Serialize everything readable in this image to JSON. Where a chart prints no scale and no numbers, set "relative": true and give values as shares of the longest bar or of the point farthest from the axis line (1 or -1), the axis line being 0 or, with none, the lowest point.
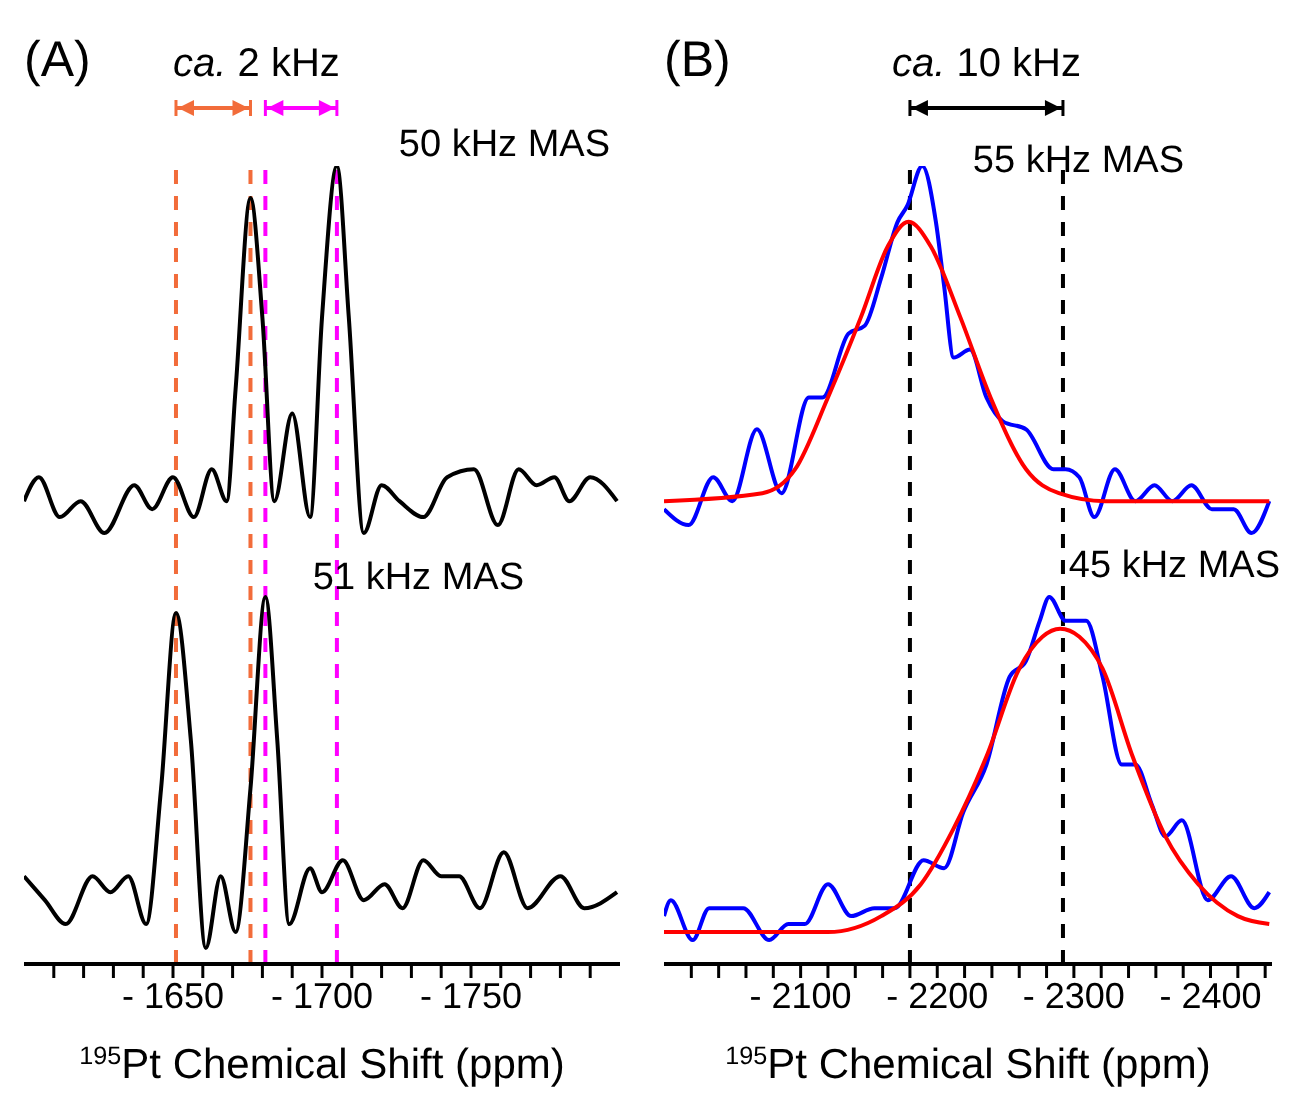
{
  "chart_data": [
    {
      "type": "line",
      "title": "(A)",
      "annotations": [
        "ca. 2 kHz"
      ],
      "xlabel": "$^{195}$Pt Chemical Shift (ppm)",
      "relative": true,
      "xlim": [
        -1600,
        -1800
      ],
      "xticks": [
        {
          "value": -1610,
          "label": null
        },
        {
          "value": -1620,
          "label": null
        },
        {
          "value": -1630,
          "label": null
        },
        {
          "value": -1640,
          "label": null
        },
        {
          "value": -1650,
          "label": "- 1650"
        },
        {
          "value": -1660,
          "label": null
        },
        {
          "value": -1670,
          "label": null
        },
        {
          "value": -1680,
          "label": null
        },
        {
          "value": -1690,
          "label": null
        },
        {
          "value": -1700,
          "label": "- 1700"
        },
        {
          "value": -1710,
          "label": null
        },
        {
          "value": -1720,
          "label": null
        },
        {
          "value": -1730,
          "label": null
        },
        {
          "value": -1740,
          "label": null
        },
        {
          "value": -1750,
          "label": "- 1750"
        },
        {
          "value": -1760,
          "label": null
        },
        {
          "value": -1770,
          "label": null
        },
        {
          "value": -1780,
          "label": null
        },
        {
          "value": -1790,
          "label": null
        }
      ],
      "series": [
        {
          "name": "50 kHz MAS",
          "color": "#000000",
          "x": [
            -1600,
            -1605,
            -1612,
            -1619,
            -1627,
            -1637,
            -1643,
            -1650,
            -1657,
            -1663,
            -1668,
            -1671,
            -1676,
            -1680,
            -1684,
            -1690,
            -1696,
            -1700,
            -1705,
            -1709,
            -1714,
            -1720,
            -1726,
            -1734,
            -1742,
            -1751,
            -1759,
            -1766,
            -1772,
            -1778,
            -1783,
            -1790,
            -1799
          ],
          "values": [
            0.58,
            0.61,
            0.56,
            0.58,
            0.54,
            0.6,
            0.57,
            0.61,
            0.56,
            0.62,
            0.58,
            0.72,
            0.96,
            0.81,
            0.58,
            0.69,
            0.56,
            0.81,
            1,
            0.81,
            0.54,
            0.6,
            0.58,
            0.56,
            0.61,
            0.62,
            0.55,
            0.62,
            0.6,
            0.61,
            0.58,
            0.61,
            0.58
          ]
        },
        {
          "name": "51 kHz MAS",
          "color": "#000000",
          "x": [
            -1600,
            -1607,
            -1614,
            -1623,
            -1629,
            -1635,
            -1641,
            -1646,
            -1651,
            -1656,
            -1661,
            -1666,
            -1671,
            -1676,
            -1681,
            -1685,
            -1689,
            -1696,
            -1700,
            -1707,
            -1714,
            -1721,
            -1727,
            -1734,
            -1740,
            -1746,
            -1753,
            -1761,
            -1769,
            -1780,
            -1788,
            -1799
          ],
          "values": [
            0.11,
            0.08,
            0.05,
            0.11,
            0.09,
            0.11,
            0.05,
            0.22,
            0.44,
            0.28,
            0.02,
            0.11,
            0.04,
            0.22,
            0.46,
            0.28,
            0.05,
            0.12,
            0.09,
            0.13,
            0.08,
            0.1,
            0.07,
            0.13,
            0.11,
            0.11,
            0.07,
            0.14,
            0.07,
            0.11,
            0.07,
            0.09
          ]
        }
      ],
      "ref_lines": [
        {
          "axis": "x",
          "value": -1651,
          "color": "#f26c3a",
          "line_style": "dashed"
        },
        {
          "axis": "x",
          "value": -1676,
          "color": "#f26c3a",
          "line_style": "dashed"
        },
        {
          "axis": "x",
          "value": -1681,
          "color": "#ff00ff",
          "line_style": "dashed"
        },
        {
          "axis": "x",
          "value": -1705,
          "color": "#ff00ff",
          "line_style": "dashed"
        }
      ]
    },
    {
      "type": "line",
      "title": "(B)",
      "annotations": [
        "ca. 10 kHz"
      ],
      "xlabel": "$^{195}$Pt Chemical Shift (ppm)",
      "relative": true,
      "xlim": [
        -2000,
        -2445
      ],
      "xticks": [
        {
          "value": -2020,
          "label": null
        },
        {
          "value": -2040,
          "label": null
        },
        {
          "value": -2060,
          "label": null
        },
        {
          "value": -2080,
          "label": null
        },
        {
          "value": -2100,
          "label": "- 2100"
        },
        {
          "value": -2120,
          "label": null
        },
        {
          "value": -2140,
          "label": null
        },
        {
          "value": -2160,
          "label": null
        },
        {
          "value": -2180,
          "label": null
        },
        {
          "value": -2200,
          "label": "- 2200"
        },
        {
          "value": -2220,
          "label": null
        },
        {
          "value": -2240,
          "label": null
        },
        {
          "value": -2260,
          "label": null
        },
        {
          "value": -2280,
          "label": null
        },
        {
          "value": -2300,
          "label": "- 2300"
        },
        {
          "value": -2320,
          "label": null
        },
        {
          "value": -2340,
          "label": null
        },
        {
          "value": -2360,
          "label": null
        },
        {
          "value": -2380,
          "label": null
        },
        {
          "value": -2400,
          "label": "- 2400"
        },
        {
          "value": -2420,
          "label": null
        },
        {
          "value": -2440,
          "label": null
        }
      ],
      "series": [
        {
          "name": "55 kHz MAS",
          "color": "#0000ff",
          "x": [
            -2000,
            -2018,
            -2036,
            -2050,
            -2068,
            -2086,
            -2106,
            -2116,
            -2135,
            -2147,
            -2159,
            -2171,
            -2178,
            -2189,
            -2199,
            -2205,
            -2212,
            -2224,
            -2236,
            -2248,
            -2265,
            -2285,
            -2294,
            -2304,
            -2315,
            -2330,
            -2345,
            -2359,
            -2372,
            -2386,
            -2401,
            -2417,
            -2430,
            -2443
          ],
          "values": [
            0.57,
            0.55,
            0.61,
            0.58,
            0.67,
            0.59,
            0.71,
            0.71,
            0.79,
            0.8,
            0.86,
            0.93,
            0.95,
            1,
            0.93,
            0.85,
            0.76,
            0.77,
            0.71,
            0.68,
            0.67,
            0.62,
            0.62,
            0.61,
            0.56,
            0.62,
            0.58,
            0.6,
            0.58,
            0.6,
            0.57,
            0.57,
            0.54,
            0.58
          ]
        },
        {
          "color": "#ff0000",
          "x": [
            -2000,
            -2072,
            -2096,
            -2120,
            -2144,
            -2164,
            -2179,
            -2195,
            -2217,
            -2239,
            -2265,
            -2289,
            -2323,
            -2443
          ],
          "values": [
            0.58,
            0.59,
            0.62,
            0.71,
            0.81,
            0.9,
            0.93,
            0.9,
            0.81,
            0.71,
            0.62,
            0.59,
            0.58,
            0.58
          ]
        },
        {
          "name": "45 kHz MAS",
          "color": "#0000ff",
          "x": [
            -2000,
            -2005,
            -2021,
            -2033,
            -2058,
            -2077,
            -2091,
            -2103,
            -2120,
            -2137,
            -2154,
            -2169,
            -2190,
            -2205,
            -2219,
            -2236,
            -2253,
            -2265,
            -2275,
            -2282,
            -2294,
            -2309,
            -2321,
            -2335,
            -2345,
            -2357,
            -2367,
            -2379,
            -2398,
            -2415,
            -2432,
            -2443
          ],
          "values": [
            0.06,
            0.08,
            0.03,
            0.07,
            0.07,
            0.03,
            0.05,
            0.05,
            0.1,
            0.06,
            0.07,
            0.07,
            0.13,
            0.12,
            0.19,
            0.25,
            0.36,
            0.38,
            0.43,
            0.46,
            0.43,
            0.43,
            0.36,
            0.25,
            0.25,
            0.2,
            0.16,
            0.18,
            0.08,
            0.11,
            0.07,
            0.09
          ]
        },
        {
          "color": "#ff0000",
          "x": [
            -2000,
            -2120,
            -2159,
            -2188,
            -2212,
            -2236,
            -2260,
            -2277,
            -2290,
            -2304,
            -2321,
            -2343,
            -2367,
            -2391,
            -2420,
            -2443
          ],
          "values": [
            0.04,
            0.04,
            0.06,
            0.1,
            0.17,
            0.26,
            0.37,
            0.41,
            0.42,
            0.41,
            0.37,
            0.26,
            0.16,
            0.1,
            0.06,
            0.05
          ]
        }
      ],
      "ref_lines": [
        {
          "axis": "x",
          "value": -2180,
          "color": "#000000",
          "line_style": "dashed"
        },
        {
          "axis": "x",
          "value": -2292,
          "color": "#000000",
          "line_style": "dashed"
        }
      ]
    }
  ]
}
